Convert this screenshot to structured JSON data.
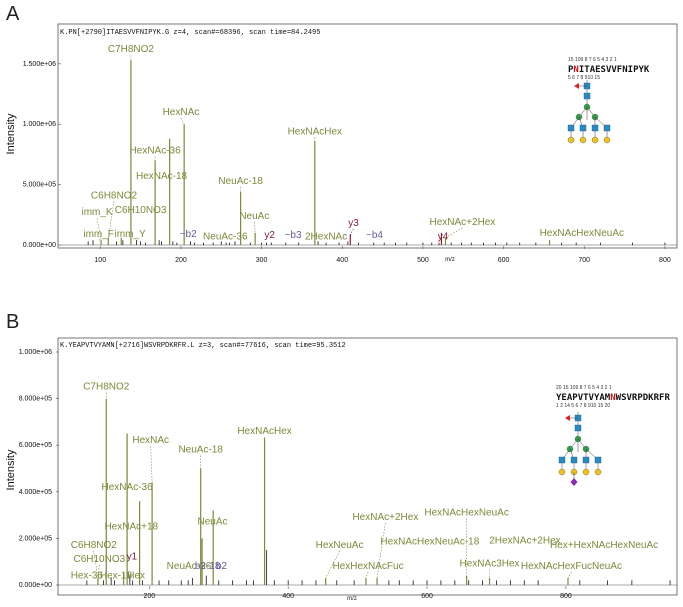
{
  "colors": {
    "glyco": "#7a8a3a",
    "y_ion": "#8a1a3a",
    "b_ion": "#6a5aa0",
    "peak": "#111111",
    "frame": "#555555",
    "glcnac": "#2a8bc4",
    "mannose": "#2ea04a",
    "galactose": "#f2c21a",
    "fucose": "#e02020",
    "neuac": "#8a2ab4"
  },
  "chart_data": [
    {
      "type": "bar",
      "panel_label": "A",
      "header": "K.PN[+2790]ITAESVVFNIPYK.G z=4, scan#=68396, scan time=84.2495",
      "ylabel": "Intensity",
      "xlabel": "m/z",
      "xlim": [
        60,
        815
      ],
      "ylim": [
        0,
        1830000
      ],
      "x_ticks": [
        100,
        200,
        300,
        400,
        500,
        600,
        700,
        800
      ],
      "y_ticks": [
        0,
        500000,
        1000000,
        1500000
      ],
      "y_tick_labels": [
        "0.000e+00",
        "5.000e+05",
        "1.000e+06",
        "1.500e+06"
      ],
      "peptide": {
        "sequence": "PNITAESVVFNIPYK",
        "glyco_index": 1,
        "top_numbers": "15 109 8 7 6 5 4 3 2 1",
        "bottom_numbers": "5 6 7 8 910 15"
      },
      "glycan": {
        "fucose": true,
        "antennae": 3,
        "sialic_acids": 0
      },
      "peaks": [
        {
          "x": 85,
          "y": 30000,
          "kind": "minor"
        },
        {
          "x": 91,
          "y": 40000,
          "kind": "minor"
        },
        {
          "x": 101,
          "y": 40000,
          "kind": "glyco"
        },
        {
          "x": 110,
          "y": 60000,
          "kind": "glyco"
        },
        {
          "x": 120,
          "y": 30000,
          "kind": "minor"
        },
        {
          "x": 126,
          "y": 60000,
          "kind": "glyco"
        },
        {
          "x": 128,
          "y": 40000,
          "kind": "minor"
        },
        {
          "x": 138,
          "y": 1530000,
          "kind": "glyco"
        },
        {
          "x": 145,
          "y": 40000,
          "kind": "minor"
        },
        {
          "x": 150,
          "y": 30000,
          "kind": "minor"
        },
        {
          "x": 156,
          "y": 20000,
          "kind": "minor"
        },
        {
          "x": 168,
          "y": 700000,
          "kind": "glyco"
        },
        {
          "x": 173,
          "y": 40000,
          "kind": "minor"
        },
        {
          "x": 176,
          "y": 30000,
          "kind": "minor"
        },
        {
          "x": 186,
          "y": 880000,
          "kind": "glyco"
        },
        {
          "x": 190,
          "y": 30000,
          "kind": "minor"
        },
        {
          "x": 195,
          "y": 20000,
          "kind": "minor"
        },
        {
          "x": 204,
          "y": 1000000,
          "kind": "glyco"
        },
        {
          "x": 212,
          "y": 30000,
          "kind": "minor"
        },
        {
          "x": 217,
          "y": 20000,
          "kind": "minor"
        },
        {
          "x": 228,
          "y": 20000,
          "kind": "minor"
        },
        {
          "x": 240,
          "y": 20000,
          "kind": "minor"
        },
        {
          "x": 250,
          "y": 30000,
          "kind": "minor"
        },
        {
          "x": 256,
          "y": 20000,
          "kind": "minor"
        },
        {
          "x": 260,
          "y": 20000,
          "kind": "minor"
        },
        {
          "x": 267,
          "y": 30000,
          "kind": "minor"
        },
        {
          "x": 274,
          "y": 440000,
          "kind": "glyco"
        },
        {
          "x": 286,
          "y": 20000,
          "kind": "minor"
        },
        {
          "x": 292,
          "y": 100000,
          "kind": "glyco"
        },
        {
          "x": 300,
          "y": 20000,
          "kind": "minor"
        },
        {
          "x": 306,
          "y": 20000,
          "kind": "minor"
        },
        {
          "x": 312,
          "y": 20000,
          "kind": "minor"
        },
        {
          "x": 330,
          "y": 20000,
          "kind": "minor"
        },
        {
          "x": 346,
          "y": 20000,
          "kind": "minor"
        },
        {
          "x": 366,
          "y": 860000,
          "kind": "glyco"
        },
        {
          "x": 370,
          "y": 30000,
          "kind": "minor"
        },
        {
          "x": 380,
          "y": 20000,
          "kind": "minor"
        },
        {
          "x": 396,
          "y": 20000,
          "kind": "minor"
        },
        {
          "x": 407,
          "y": 30000,
          "kind": "minor"
        },
        {
          "x": 410,
          "y": 90000,
          "kind": "y"
        },
        {
          "x": 420,
          "y": 20000,
          "kind": "minor"
        },
        {
          "x": 439,
          "y": 20000,
          "kind": "minor"
        },
        {
          "x": 452,
          "y": 20000,
          "kind": "minor"
        },
        {
          "x": 466,
          "y": 20000,
          "kind": "minor"
        },
        {
          "x": 480,
          "y": 20000,
          "kind": "minor"
        },
        {
          "x": 500,
          "y": 20000,
          "kind": "minor"
        },
        {
          "x": 511,
          "y": 20000,
          "kind": "minor"
        },
        {
          "x": 520,
          "y": 20000,
          "kind": "minor"
        },
        {
          "x": 523,
          "y": 100000,
          "kind": "y"
        },
        {
          "x": 528,
          "y": 60000,
          "kind": "glyco"
        },
        {
          "x": 535,
          "y": 20000,
          "kind": "minor"
        },
        {
          "x": 548,
          "y": 20000,
          "kind": "minor"
        },
        {
          "x": 560,
          "y": 20000,
          "kind": "minor"
        },
        {
          "x": 575,
          "y": 20000,
          "kind": "minor"
        },
        {
          "x": 590,
          "y": 20000,
          "kind": "minor"
        },
        {
          "x": 604,
          "y": 20000,
          "kind": "minor"
        },
        {
          "x": 620,
          "y": 20000,
          "kind": "minor"
        },
        {
          "x": 640,
          "y": 20000,
          "kind": "minor"
        },
        {
          "x": 657,
          "y": 40000,
          "kind": "glyco"
        },
        {
          "x": 672,
          "y": 20000,
          "kind": "minor"
        },
        {
          "x": 690,
          "y": 20000,
          "kind": "minor"
        },
        {
          "x": 720,
          "y": 20000,
          "kind": "minor"
        },
        {
          "x": 760,
          "y": 20000,
          "kind": "minor"
        },
        {
          "x": 800,
          "y": 20000,
          "kind": "minor"
        }
      ],
      "labels": [
        {
          "text": "C7H8NO2",
          "mz": 138,
          "level": 1580000,
          "kind": "glyco"
        },
        {
          "text": "HexNAc",
          "mz": 200,
          "level": 1060000,
          "kind": "glyco"
        },
        {
          "text": "HexNAc-36",
          "mz": 168,
          "level": 740000,
          "kind": "glyco"
        },
        {
          "text": "HexNAcHex",
          "mz": 366,
          "level": 900000,
          "kind": "glyco"
        },
        {
          "text": "NeuAc-18",
          "mz": 274,
          "level": 490000,
          "kind": "glyco"
        },
        {
          "text": "C6H8NO2",
          "mz": 117,
          "level": 370000,
          "kind": "glyco"
        },
        {
          "text": "HexNAc-18",
          "mz": 176,
          "level": 530000,
          "kind": "glyco"
        },
        {
          "text": "imm_K",
          "mz": 96,
          "level": 230000,
          "kind": "glyco"
        },
        {
          "text": "C6H10NO3",
          "mz": 150,
          "level": 250000,
          "kind": "glyco"
        },
        {
          "text": "NeuAc",
          "mz": 291,
          "level": 200000,
          "kind": "glyco"
        },
        {
          "text": "imm_F",
          "mz": 98,
          "level": 50000,
          "kind": "glyco"
        },
        {
          "text": "imm_Y",
          "mz": 137,
          "level": 50000,
          "kind": "glyco"
        },
        {
          "text": "~b2",
          "mz": 209,
          "level": 50000,
          "kind": "b"
        },
        {
          "text": "NeuAc-36",
          "mz": 255,
          "level": 30000,
          "kind": "glyco"
        },
        {
          "text": "y2",
          "mz": 310,
          "level": 40000,
          "kind": "y"
        },
        {
          "text": "~b3",
          "mz": 339,
          "level": 40000,
          "kind": "b"
        },
        {
          "text": "2HexNAc",
          "mz": 380,
          "level": 30000,
          "kind": "glyco"
        },
        {
          "text": "~b4",
          "mz": 440,
          "level": 40000,
          "kind": "b"
        },
        {
          "text": "y3",
          "mz": 414,
          "level": 140000,
          "kind": "y"
        },
        {
          "text": "y4",
          "mz": 525,
          "level": 30000,
          "kind": "y"
        },
        {
          "text": "HexNAc+2Hex",
          "mz": 549,
          "level": 150000,
          "kind": "glyco"
        },
        {
          "text": "HexNAcHexNeuAc",
          "mz": 697,
          "level": 60000,
          "kind": "glyco"
        }
      ]
    },
    {
      "type": "bar",
      "panel_label": "B",
      "header": "K.YEAPVTVYAMN[+2716]WSVRPDKRFR.L z=3, scan#=77616, scan time=95.3512",
      "ylabel": "Intensity",
      "xlabel": "m/z",
      "xlim": [
        80,
        960
      ],
      "ylim": [
        0,
        1060000
      ],
      "x_ticks": [
        200,
        400,
        600,
        800
      ],
      "y_ticks": [
        0,
        200000,
        400000,
        600000,
        800000,
        1000000
      ],
      "y_tick_labels": [
        "0.000e+00",
        "2.000e+05",
        "4.000e+05",
        "6.000e+05",
        "8.000e+05",
        "1.000e+06"
      ],
      "peptide": {
        "sequence": "YEAPVTVYAMNWSVRPDKRFR",
        "glyco_index": 10,
        "top_numbers": "20 15 109 8 7 6 5 4 3 2 1",
        "bottom_numbers": "1 2 14 5 6 7 8 910 15 20"
      },
      "glycan": {
        "fucose": true,
        "antennae": 3,
        "sialic_acids": 1
      },
      "peaks": [
        {
          "x": 110,
          "y": 20000,
          "kind": "minor"
        },
        {
          "x": 126,
          "y": 30000,
          "kind": "glyco"
        },
        {
          "x": 134,
          "y": 20000,
          "kind": "minor"
        },
        {
          "x": 138,
          "y": 800000,
          "kind": "glyco"
        },
        {
          "x": 145,
          "y": 30000,
          "kind": "minor"
        },
        {
          "x": 150,
          "y": 20000,
          "kind": "minor"
        },
        {
          "x": 163,
          "y": 50000,
          "kind": "glyco"
        },
        {
          "x": 168,
          "y": 650000,
          "kind": "glyco"
        },
        {
          "x": 172,
          "y": 40000,
          "kind": "minor"
        },
        {
          "x": 176,
          "y": 20000,
          "kind": "minor"
        },
        {
          "x": 186,
          "y": 360000,
          "kind": "glyco"
        },
        {
          "x": 190,
          "y": 20000,
          "kind": "minor"
        },
        {
          "x": 204,
          "y": 440000,
          "kind": "glyco"
        },
        {
          "x": 214,
          "y": 20000,
          "kind": "minor"
        },
        {
          "x": 228,
          "y": 20000,
          "kind": "minor"
        },
        {
          "x": 246,
          "y": 20000,
          "kind": "minor"
        },
        {
          "x": 256,
          "y": 20000,
          "kind": "minor"
        },
        {
          "x": 262,
          "y": 30000,
          "kind": "minor"
        },
        {
          "x": 274,
          "y": 500000,
          "kind": "glyco"
        },
        {
          "x": 276,
          "y": 200000,
          "kind": "glyco"
        },
        {
          "x": 282,
          "y": 40000,
          "kind": "minor"
        },
        {
          "x": 292,
          "y": 320000,
          "kind": "glyco"
        },
        {
          "x": 300,
          "y": 20000,
          "kind": "minor"
        },
        {
          "x": 320,
          "y": 20000,
          "kind": "minor"
        },
        {
          "x": 340,
          "y": 20000,
          "kind": "minor"
        },
        {
          "x": 350,
          "y": 20000,
          "kind": "minor"
        },
        {
          "x": 366,
          "y": 630000,
          "kind": "glyco"
        },
        {
          "x": 369,
          "y": 150000,
          "kind": "minor"
        },
        {
          "x": 380,
          "y": 20000,
          "kind": "minor"
        },
        {
          "x": 400,
          "y": 20000,
          "kind": "minor"
        },
        {
          "x": 420,
          "y": 20000,
          "kind": "minor"
        },
        {
          "x": 440,
          "y": 20000,
          "kind": "minor"
        },
        {
          "x": 454,
          "y": 30000,
          "kind": "glyco"
        },
        {
          "x": 470,
          "y": 20000,
          "kind": "minor"
        },
        {
          "x": 495,
          "y": 20000,
          "kind": "minor"
        },
        {
          "x": 512,
          "y": 30000,
          "kind": "glyco"
        },
        {
          "x": 528,
          "y": 30000,
          "kind": "glyco"
        },
        {
          "x": 545,
          "y": 20000,
          "kind": "minor"
        },
        {
          "x": 560,
          "y": 20000,
          "kind": "minor"
        },
        {
          "x": 580,
          "y": 20000,
          "kind": "minor"
        },
        {
          "x": 600,
          "y": 20000,
          "kind": "minor"
        },
        {
          "x": 620,
          "y": 20000,
          "kind": "minor"
        },
        {
          "x": 640,
          "y": 20000,
          "kind": "minor"
        },
        {
          "x": 657,
          "y": 40000,
          "kind": "glyco"
        },
        {
          "x": 660,
          "y": 20000,
          "kind": "minor"
        },
        {
          "x": 680,
          "y": 20000,
          "kind": "minor"
        },
        {
          "x": 690,
          "y": 30000,
          "kind": "glyco"
        },
        {
          "x": 700,
          "y": 20000,
          "kind": "minor"
        },
        {
          "x": 720,
          "y": 20000,
          "kind": "minor"
        },
        {
          "x": 740,
          "y": 20000,
          "kind": "minor"
        },
        {
          "x": 760,
          "y": 20000,
          "kind": "minor"
        },
        {
          "x": 803,
          "y": 30000,
          "kind": "glyco"
        },
        {
          "x": 820,
          "y": 20000,
          "kind": "minor"
        },
        {
          "x": 860,
          "y": 20000,
          "kind": "minor"
        },
        {
          "x": 895,
          "y": 20000,
          "kind": "minor"
        },
        {
          "x": 950,
          "y": 20000,
          "kind": "minor"
        }
      ],
      "labels": [
        {
          "text": "C7H8NO2",
          "mz": 138,
          "level": 830000,
          "kind": "glyco"
        },
        {
          "text": "HexNAc",
          "mz": 202,
          "level": 600000,
          "kind": "glyco"
        },
        {
          "text": "HexNAcHex",
          "mz": 366,
          "level": 640000,
          "kind": "glyco"
        },
        {
          "text": "NeuAc-18",
          "mz": 274,
          "level": 560000,
          "kind": "glyco"
        },
        {
          "text": "HexNAc-36",
          "mz": 168,
          "level": 400000,
          "kind": "glyco"
        },
        {
          "text": "HexNAc+18",
          "mz": 174,
          "level": 230000,
          "kind": "glyco"
        },
        {
          "text": "NeuAc",
          "mz": 291,
          "level": 250000,
          "kind": "glyco"
        },
        {
          "text": "C6H8NO2",
          "mz": 120,
          "level": 150000,
          "kind": "glyco"
        },
        {
          "text": "C6H10NO3",
          "mz": 128,
          "level": 90000,
          "kind": "glyco"
        },
        {
          "text": "y1",
          "mz": 175,
          "level": 100000,
          "kind": "y"
        },
        {
          "text": "NeuAc-36",
          "mz": 257,
          "level": 60000,
          "kind": "glyco"
        },
        {
          "text": "b2-18",
          "mz": 284,
          "level": 60000,
          "kind": "b"
        },
        {
          "text": "b2",
          "mz": 304,
          "level": 60000,
          "kind": "b"
        },
        {
          "text": "Hex-36",
          "mz": 110,
          "level": 20000,
          "kind": "glyco"
        },
        {
          "text": "Hex-18",
          "mz": 152,
          "level": 20000,
          "kind": "glyco"
        },
        {
          "text": "Hex",
          "mz": 181,
          "level": 20000,
          "kind": "glyco"
        },
        {
          "text": "HexNeuAc",
          "mz": 474,
          "level": 150000,
          "kind": "glyco"
        },
        {
          "text": "HexHexNAcFuc",
          "mz": 515,
          "level": 60000,
          "kind": "glyco"
        },
        {
          "text": "HexNAc+2Hex",
          "mz": 540,
          "level": 270000,
          "kind": "glyco"
        },
        {
          "text": "HexNAcHexNeuAc",
          "mz": 657,
          "level": 290000,
          "kind": "glyco"
        },
        {
          "text": "HexNAcHexNeuAc-18",
          "mz": 604,
          "level": 165000,
          "kind": "glyco"
        },
        {
          "text": "2HexNAc+2Hex",
          "mz": 741,
          "level": 170000,
          "kind": "glyco"
        },
        {
          "text": "Hex+HexNAcHexNeuAc",
          "mz": 855,
          "level": 150000,
          "kind": "glyco"
        },
        {
          "text": "HexNAc3Hex",
          "mz": 690,
          "level": 70000,
          "kind": "glyco"
        },
        {
          "text": "HexNAcHexFucNeuAc",
          "mz": 808,
          "level": 60000,
          "kind": "glyco"
        }
      ]
    }
  ]
}
